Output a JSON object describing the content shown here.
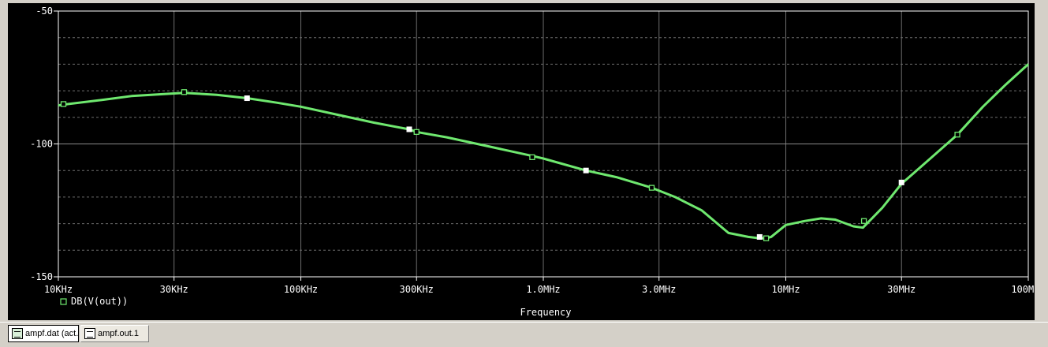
{
  "chart_data": {
    "type": "line",
    "title": "",
    "xlabel": "Frequency",
    "ylabel": "",
    "x_scale": "log",
    "xlim": [
      10000,
      100000000
    ],
    "ylim": [
      -150,
      -50
    ],
    "x_ticks": [
      {
        "value": 10000,
        "label": "10KHz"
      },
      {
        "value": 30000,
        "label": "30KHz"
      },
      {
        "value": 100000,
        "label": "100KHz"
      },
      {
        "value": 300000,
        "label": "300KHz"
      },
      {
        "value": 1000000,
        "label": "1.0MHz"
      },
      {
        "value": 3000000,
        "label": "3.0MHz"
      },
      {
        "value": 10000000,
        "label": "10MHz"
      },
      {
        "value": 30000000,
        "label": "30MHz"
      },
      {
        "value": 100000000,
        "label": "100MHz"
      }
    ],
    "y_ticks": [
      {
        "value": -50,
        "label": "-50"
      },
      {
        "value": -100,
        "label": "-100"
      },
      {
        "value": -150,
        "label": "-150"
      }
    ],
    "grid": true,
    "legend_position": "bottom-left",
    "series": [
      {
        "name": "DB(V(out))",
        "color": "#6fe86f",
        "x": [
          10000,
          11000,
          15000,
          20000,
          30000,
          33000,
          45000,
          60000,
          80000,
          100000,
          150000,
          200000,
          280000,
          300000,
          400000,
          600000,
          900000,
          1000000,
          1500000,
          2000000,
          2800000,
          3500000,
          4500000,
          5800000,
          7000000,
          7800000,
          8300000,
          8700000,
          10000000,
          12000000,
          14000000,
          16000000,
          19000000,
          20800000,
          25000000,
          30000000,
          40000000,
          51000000,
          65000000,
          80000000,
          100000000
        ],
        "y": [
          -85.5,
          -85,
          -83.5,
          -82,
          -81,
          -80.8,
          -81.5,
          -82.8,
          -84.5,
          -86,
          -89.5,
          -92,
          -94.5,
          -95.5,
          -97.5,
          -101,
          -104.5,
          -105.5,
          -110,
          -112.5,
          -116.5,
          -120,
          -125,
          -133.5,
          -135,
          -135.5,
          -135.5,
          -135,
          -130.5,
          -129,
          -128,
          -128.5,
          -131,
          -131.5,
          -124,
          -115,
          -105,
          -96.5,
          -86,
          -78,
          -70
        ]
      }
    ],
    "markers_open": [
      [
        10500,
        -85
      ],
      [
        33000,
        -80.5
      ],
      [
        300000,
        -95.5
      ],
      [
        900000,
        -105
      ],
      [
        2800000,
        -116.5
      ],
      [
        8300000,
        -135.5
      ],
      [
        21000000,
        -129
      ],
      [
        51000000,
        -96.5
      ]
    ],
    "markers_filled": [
      [
        60000,
        -82.8
      ],
      [
        280000,
        -94.5
      ],
      [
        1500000,
        -110
      ],
      [
        7800000,
        -135
      ],
      [
        30000000,
        -114.5
      ]
    ]
  },
  "tabs": [
    {
      "label": "ampf.dat (act...",
      "icon": "data-file-icon",
      "active": true
    },
    {
      "label": "ampf.out.1",
      "icon": "text-file-icon",
      "active": false
    }
  ]
}
